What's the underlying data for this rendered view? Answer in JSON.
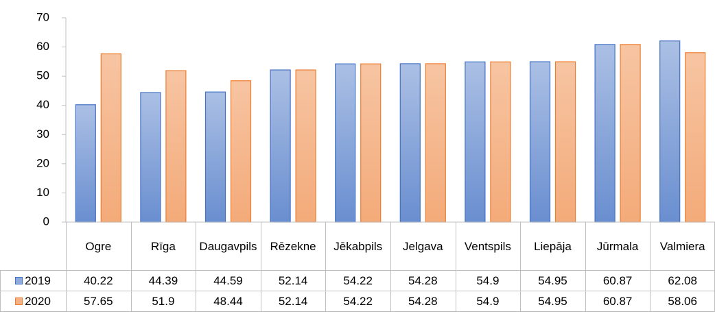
{
  "chart_data": {
    "type": "bar",
    "categories": [
      "Ogre",
      "Rīga",
      "Daugavpils",
      "Rēzekne",
      "Jēkabpils",
      "Jelgava",
      "Ventspils",
      "Liepāja",
      "Jūrmala",
      "Valmiera"
    ],
    "series": [
      {
        "name": "2019",
        "color": "#4472c4",
        "values": [
          40.22,
          44.39,
          44.59,
          52.14,
          54.22,
          54.28,
          54.9,
          54.95,
          60.87,
          62.08
        ]
      },
      {
        "name": "2020",
        "color": "#ed7d31",
        "values": [
          57.65,
          51.9,
          48.44,
          52.14,
          54.22,
          54.28,
          54.9,
          54.95,
          60.87,
          58.06
        ]
      }
    ],
    "ylim": [
      0,
      70
    ],
    "yticks": [
      0,
      10,
      20,
      30,
      40,
      50,
      60,
      70
    ],
    "grid": false,
    "data_table": true
  }
}
